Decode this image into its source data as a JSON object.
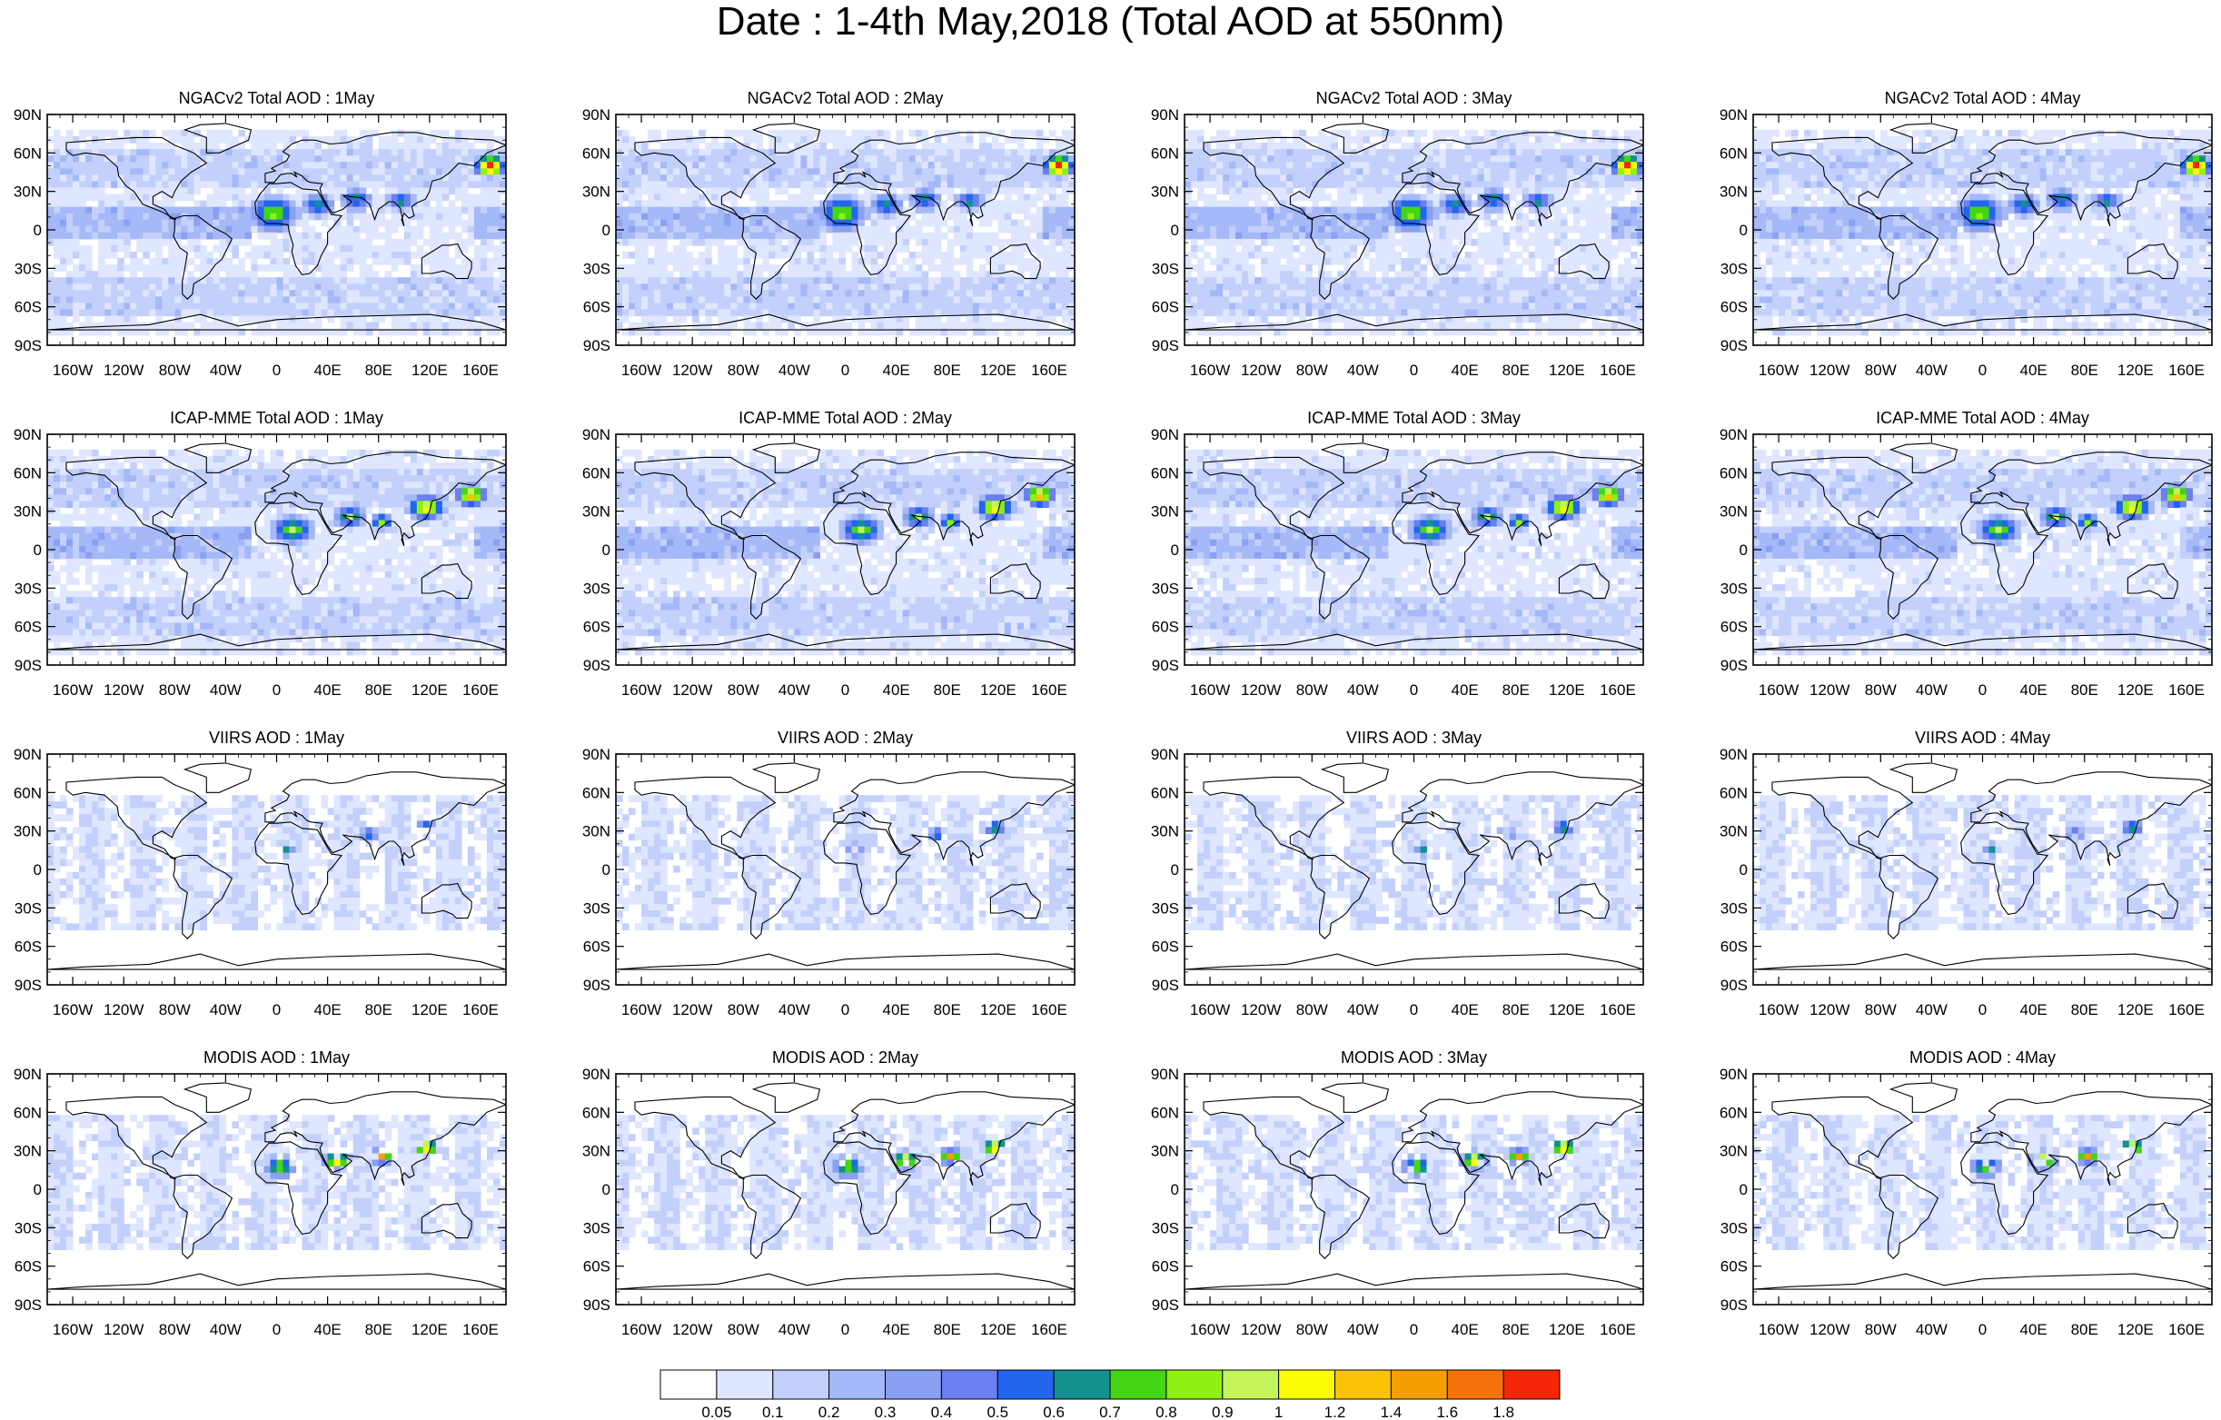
{
  "figure_title": "Date : 1-4th May,2018 (Total AOD at 550nm)",
  "chart_data": {
    "type": "heatmap",
    "title": "Date : 1-4th May,2018 (Total AOD at 550nm)",
    "quantity": "Total AOD at 550nm",
    "panels": [
      {
        "title": "NGACv2 Total AOD : 1May",
        "source": "NGACv2",
        "day": "1May"
      },
      {
        "title": "NGACv2 Total AOD : 2May",
        "source": "NGACv2",
        "day": "2May"
      },
      {
        "title": "NGACv2 Total AOD : 3May",
        "source": "NGACv2",
        "day": "3May"
      },
      {
        "title": "NGACv2 Total AOD : 4May",
        "source": "NGACv2",
        "day": "4May"
      },
      {
        "title": "ICAP-MME Total AOD : 1May",
        "source": "ICAP-MME",
        "day": "1May"
      },
      {
        "title": "ICAP-MME Total AOD : 2May",
        "source": "ICAP-MME",
        "day": "2May"
      },
      {
        "title": "ICAP-MME Total AOD : 3May",
        "source": "ICAP-MME",
        "day": "3May"
      },
      {
        "title": "ICAP-MME Total AOD : 4May",
        "source": "ICAP-MME",
        "day": "4May"
      },
      {
        "title": "VIIRS AOD : 1May",
        "source": "VIIRS",
        "day": "1May"
      },
      {
        "title": "VIIRS AOD : 2May",
        "source": "VIIRS",
        "day": "2May"
      },
      {
        "title": "VIIRS AOD : 3May",
        "source": "VIIRS",
        "day": "3May"
      },
      {
        "title": "VIIRS AOD : 4May",
        "source": "VIIRS",
        "day": "4May"
      },
      {
        "title": "MODIS AOD : 1May",
        "source": "MODIS",
        "day": "1May"
      },
      {
        "title": "MODIS AOD : 2May",
        "source": "MODIS",
        "day": "2May"
      },
      {
        "title": "MODIS AOD : 3May",
        "source": "MODIS",
        "day": "3May"
      },
      {
        "title": "MODIS AOD : 4May",
        "source": "MODIS",
        "day": "4May"
      }
    ],
    "x_ticks": [
      "160W",
      "120W",
      "80W",
      "40W",
      "0",
      "40E",
      "80E",
      "120E",
      "160E"
    ],
    "x_tick_values": [
      -160,
      -120,
      -80,
      -40,
      0,
      40,
      80,
      120,
      160
    ],
    "xlim": [
      -180,
      180
    ],
    "y_ticks": [
      "90N",
      "60N",
      "30N",
      "0",
      "30S",
      "60S",
      "90S"
    ],
    "y_tick_values": [
      90,
      60,
      30,
      0,
      -30,
      -60,
      -90
    ],
    "ylim": [
      -90,
      90
    ],
    "colorbar": {
      "labels": [
        "0.05",
        "0.1",
        "0.2",
        "0.3",
        "0.4",
        "0.5",
        "0.6",
        "0.7",
        "0.8",
        "0.9",
        "1",
        "1.2",
        "1.4",
        "1.6",
        "1.8"
      ],
      "colors": [
        "#ffffff",
        "#dfe6ff",
        "#c3d0fb",
        "#a5b8f7",
        "#8aa0f2",
        "#6a7ff0",
        "#2266ee",
        "#139191",
        "#44d614",
        "#8ff014",
        "#c3f55a",
        "#fcfc07",
        "#f8c305",
        "#f79d05",
        "#f57208",
        "#f52708"
      ]
    }
  }
}
